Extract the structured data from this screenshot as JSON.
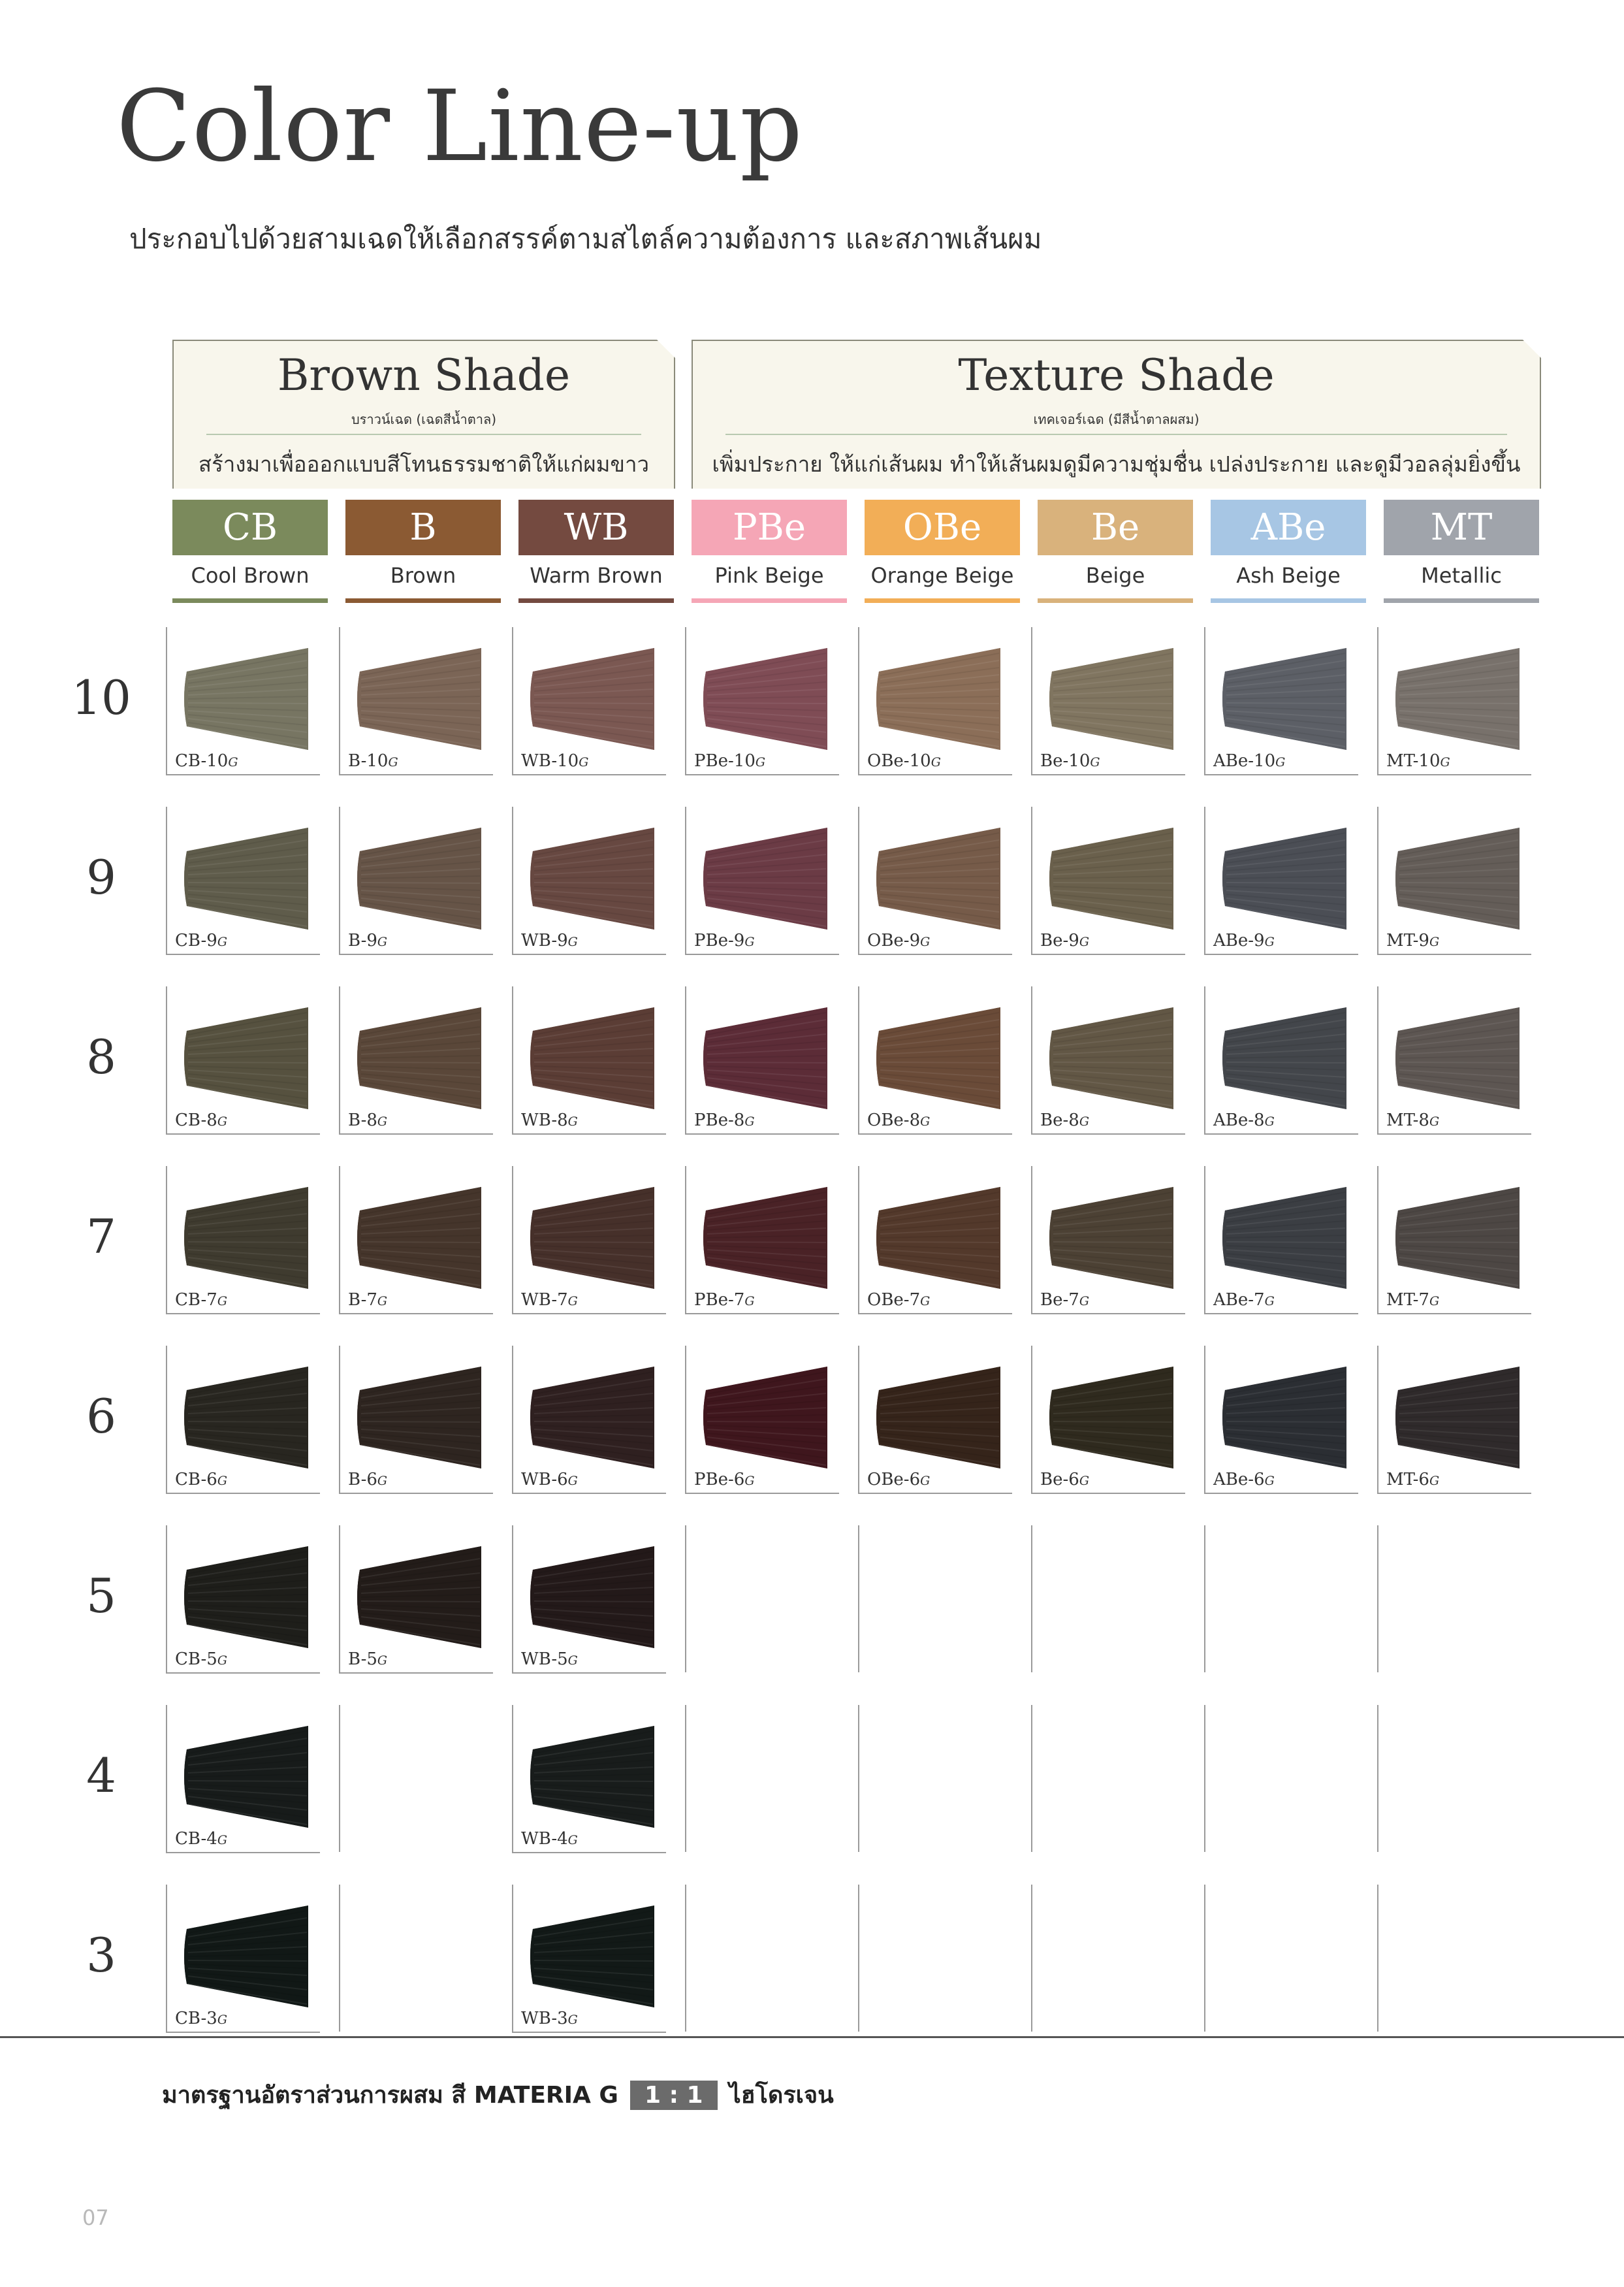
{
  "title": "Color Line-up",
  "subtitle": "ประกอบไปด้วยสามเฉดให้เลือกสรรค์ตามสไตล์ความต้องการ และสภาพเส้นผม",
  "groups": [
    {
      "title": "Brown Shade",
      "subtitle_th": "บราวน์เฉด (เฉดสีน้ำตาล)",
      "description": "สร้างมาเพื่อออกแบบสีโทนธรรมชาติให้แก่ผมขาว"
    },
    {
      "title": "Texture Shade",
      "subtitle_th": "เทคเจอร์เฉด (มีสีน้ำตาลผสม)",
      "description": "เพิ่มประกาย ให้แก่เส้นผม ทำให้เส้นผมดูมีความชุ่มชื่น เปล่งประกาย และดูมีวอลลุ่มยิ่งขึ้น"
    }
  ],
  "columns": [
    {
      "code": "CB",
      "name": "Cool Brown",
      "color": "#7b8a5c"
    },
    {
      "code": "B",
      "name": "Brown",
      "color": "#8b5a33"
    },
    {
      "code": "WB",
      "name": "Warm Brown",
      "color": "#744a40"
    },
    {
      "code": "PBe",
      "name": "Pink Beige",
      "color": "#f5a6b6"
    },
    {
      "code": "OBe",
      "name": "Orange Beige",
      "color": "#f2ae57"
    },
    {
      "code": "Be",
      "name": "Beige",
      "color": "#d9b27c"
    },
    {
      "code": "ABe",
      "name": "Ash Beige",
      "color": "#a7c6e4"
    },
    {
      "code": "MT",
      "name": "Metallic",
      "color": "#a0a4ab"
    }
  ],
  "levels": [
    {
      "level": "10",
      "swatches": [
        {
          "code": "CB-10",
          "suffix": "G",
          "color": "#777562"
        },
        {
          "code": "B-10",
          "suffix": "G",
          "color": "#7b6556"
        },
        {
          "code": "WB-10",
          "suffix": "G",
          "color": "#7b5852"
        },
        {
          "code": "PBe-10",
          "suffix": "G",
          "color": "#7f4c55"
        },
        {
          "code": "OBe-10",
          "suffix": "G",
          "color": "#8b6e58"
        },
        {
          "code": "Be-10",
          "suffix": "G",
          "color": "#807560"
        },
        {
          "code": "ABe-10",
          "suffix": "G",
          "color": "#5c5f66"
        },
        {
          "code": "MT-10",
          "suffix": "G",
          "color": "#78716b"
        }
      ]
    },
    {
      "level": "9",
      "swatches": [
        {
          "code": "CB-9",
          "suffix": "G",
          "color": "#5f5c4b"
        },
        {
          "code": "B-9",
          "suffix": "G",
          "color": "#665447"
        },
        {
          "code": "WB-9",
          "suffix": "G",
          "color": "#674841"
        },
        {
          "code": "PBe-9",
          "suffix": "G",
          "color": "#6b3b45"
        },
        {
          "code": "OBe-9",
          "suffix": "G",
          "color": "#765b49"
        },
        {
          "code": "Be-9",
          "suffix": "G",
          "color": "#6a604c"
        },
        {
          "code": "ABe-9",
          "suffix": "G",
          "color": "#4b4e55"
        },
        {
          "code": "MT-9",
          "suffix": "G",
          "color": "#645d58"
        }
      ]
    },
    {
      "level": "8",
      "swatches": [
        {
          "code": "CB-8",
          "suffix": "G",
          "color": "#56513f"
        },
        {
          "code": "B-8",
          "suffix": "G",
          "color": "#5a4739"
        },
        {
          "code": "WB-8",
          "suffix": "G",
          "color": "#5b3d35"
        },
        {
          "code": "PBe-8",
          "suffix": "G",
          "color": "#5c2c37"
        },
        {
          "code": "OBe-8",
          "suffix": "G",
          "color": "#6a4b38"
        },
        {
          "code": "Be-8",
          "suffix": "G",
          "color": "#625745"
        },
        {
          "code": "ABe-8",
          "suffix": "G",
          "color": "#43464b"
        },
        {
          "code": "MT-8",
          "suffix": "G",
          "color": "#5d5652"
        }
      ]
    },
    {
      "level": "7",
      "swatches": [
        {
          "code": "CB-7",
          "suffix": "G",
          "color": "#3f3b2f"
        },
        {
          "code": "B-7",
          "suffix": "G",
          "color": "#45352b"
        },
        {
          "code": "WB-7",
          "suffix": "G",
          "color": "#46302a"
        },
        {
          "code": "PBe-7",
          "suffix": "G",
          "color": "#4a2226"
        },
        {
          "code": "OBe-7",
          "suffix": "G",
          "color": "#53392b"
        },
        {
          "code": "Be-7",
          "suffix": "G",
          "color": "#4c4134"
        },
        {
          "code": "ABe-7",
          "suffix": "G",
          "color": "#3b3e43"
        },
        {
          "code": "MT-7",
          "suffix": "G",
          "color": "#4d4744"
        }
      ]
    },
    {
      "level": "6",
      "swatches": [
        {
          "code": "CB-6",
          "suffix": "G",
          "color": "#282620"
        },
        {
          "code": "B-6",
          "suffix": "G",
          "color": "#2e2520"
        },
        {
          "code": "WB-6",
          "suffix": "G",
          "color": "#2f2020"
        },
        {
          "code": "PBe-6",
          "suffix": "G",
          "color": "#3f161d"
        },
        {
          "code": "OBe-6",
          "suffix": "G",
          "color": "#35241a"
        },
        {
          "code": "Be-6",
          "suffix": "G",
          "color": "#2f2a1e"
        },
        {
          "code": "ABe-6",
          "suffix": "G",
          "color": "#2b2e33"
        },
        {
          "code": "MT-6",
          "suffix": "G",
          "color": "#2f2a2b"
        }
      ]
    },
    {
      "level": "5",
      "swatches": [
        {
          "code": "CB-5",
          "suffix": "G",
          "color": "#1e1e1a"
        },
        {
          "code": "B-5",
          "suffix": "G",
          "color": "#231c19"
        },
        {
          "code": "WB-5",
          "suffix": "G",
          "color": "#231919"
        },
        null,
        null,
        null,
        null,
        null
      ]
    },
    {
      "level": "4",
      "swatches": [
        {
          "code": "CB-4",
          "suffix": "G",
          "color": "#171b1a"
        },
        null,
        {
          "code": "WB-4",
          "suffix": "G",
          "color": "#181c1b"
        },
        null,
        null,
        null,
        null,
        null
      ]
    },
    {
      "level": "3",
      "swatches": [
        {
          "code": "CB-3",
          "suffix": "G",
          "color": "#111816"
        },
        null,
        {
          "code": "WB-3",
          "suffix": "G",
          "color": "#121917"
        },
        null,
        null,
        null,
        null,
        null
      ]
    }
  ],
  "mixing": {
    "text": "มาตรฐานอัตราส่วนการผสม สี MATERIA G",
    "ratio": "1 : 1",
    "developer": "ไฮโดรเจน"
  },
  "page_number": "07"
}
